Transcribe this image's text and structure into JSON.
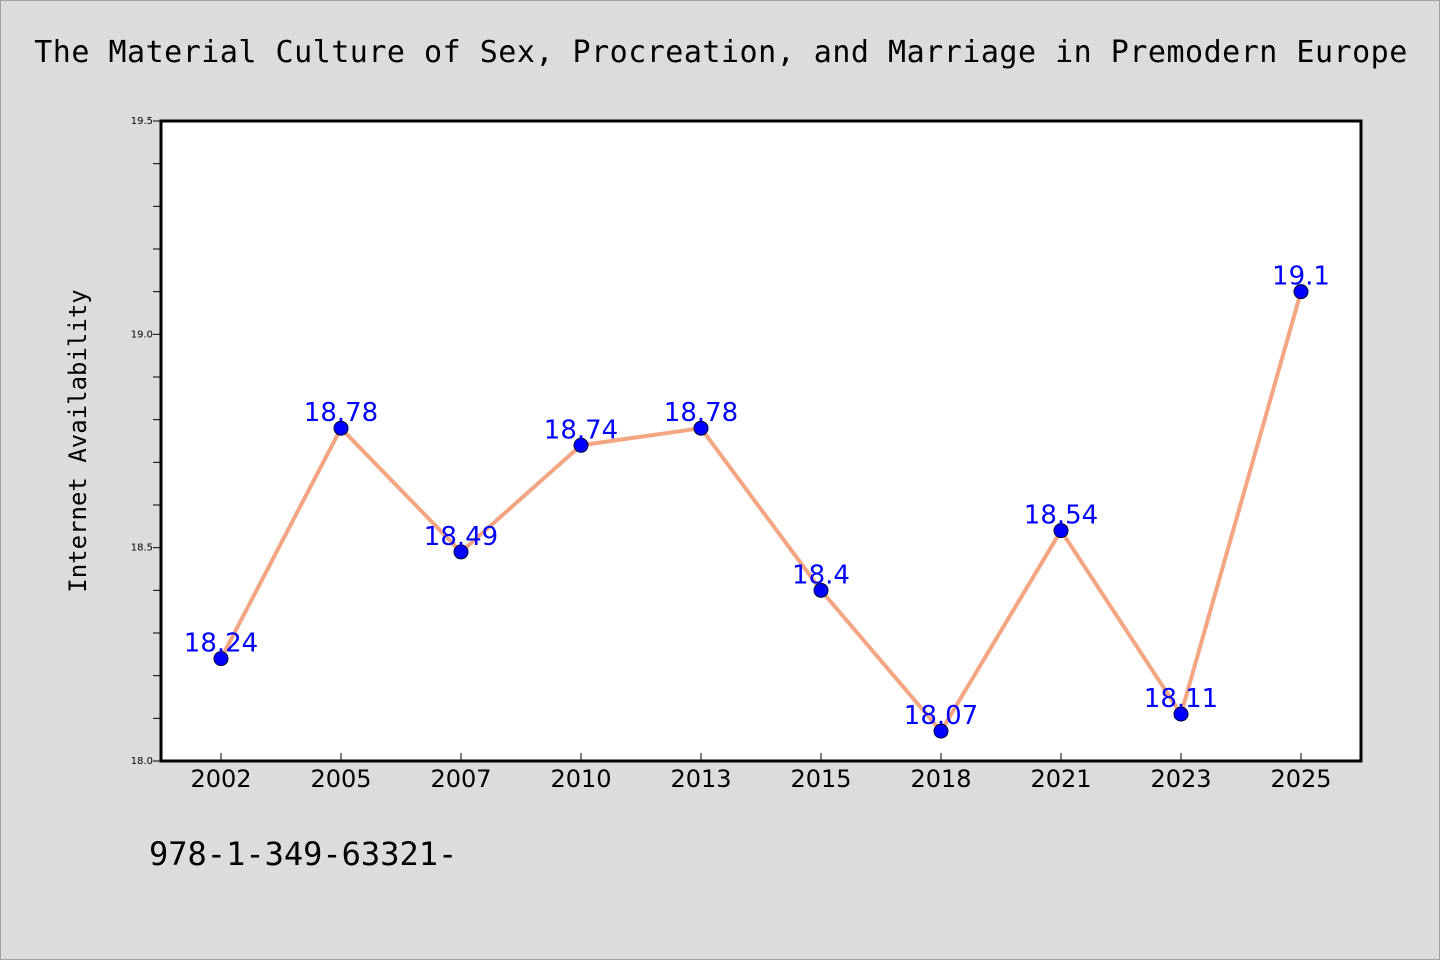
{
  "title": "The Material Culture of Sex, Procreation, and Marriage in Premodern Europe",
  "footer_text": "978-1-349-63321-",
  "colors": {
    "background": "#dcdcdc",
    "plot_background": "#ffffff",
    "line": "#f4a582",
    "marker": "#0000ff",
    "label": "#0000ff"
  },
  "chart_data": {
    "type": "line",
    "title": "The Material Culture of Sex, Procreation, and Marriage in Premodern Europe",
    "xlabel": "",
    "ylabel": "Internet Availability",
    "categories": [
      "2002",
      "2005",
      "2007",
      "2010",
      "2013",
      "2015",
      "2018",
      "2021",
      "2023",
      "2025"
    ],
    "series": [
      {
        "values": [
          18.24,
          18.78,
          18.49,
          18.74,
          18.78,
          18.4,
          18.07,
          18.54,
          18.11,
          19.1
        ],
        "labels": [
          "18.24",
          "18.78",
          "18.49",
          "18.74",
          "18.78",
          "18.4",
          "18.07",
          "18.54",
          "18.11",
          "19.1"
        ]
      }
    ],
    "ylim": [
      18.0,
      19.5
    ],
    "yticks": [
      "18.0",
      "18.5",
      "19.0",
      "19.5"
    ],
    "grid": false,
    "legend": "none"
  }
}
